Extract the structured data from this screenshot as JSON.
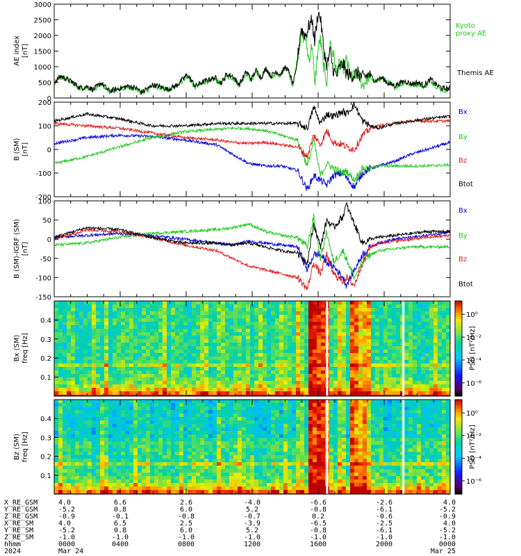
{
  "chart_data": [
    {
      "type": "line",
      "ylabel": "AE index [nT]",
      "ylim": [
        0,
        3000
      ],
      "yticks": [
        "0",
        "500",
        "1000",
        "1500",
        "2000",
        "2500",
        "3000"
      ],
      "legend": [
        "Kyoto proxy AE",
        "Themis AE"
      ],
      "series": [
        {
          "name": "Kyoto proxy AE",
          "color": "#22c81e",
          "x": [
            0,
            40,
            80,
            120,
            160,
            200,
            240,
            290,
            340,
            400,
            460,
            500,
            520,
            535,
            545,
            555,
            565,
            575,
            600,
            640,
            700,
            760,
            820,
            870,
            920,
            990,
            1030,
            1060,
            1100,
            1140,
            1185,
            1215,
            1245,
            1275,
            1305,
            1335,
            1365,
            1395,
            1425,
            1450,
            1470,
            1490,
            1520,
            1550,
            1570,
            1590,
            1605,
            1625,
            1640,
            1660,
            1680,
            1700,
            1720,
            1740,
            1760,
            1780,
            1800,
            1830,
            1870,
            1900,
            1940,
            1980,
            2020,
            2060,
            2100,
            2160,
            2200,
            2240,
            2280,
            2320,
            2360,
            2400,
            2440
          ],
          "y": [
            450,
            650,
            600,
            450,
            300,
            350,
            250,
            450,
            200,
            280,
            350,
            300,
            250,
            150,
            200,
            180,
            300,
            250,
            400,
            350,
            250,
            400,
            700,
            350,
            500,
            600,
            450,
            700,
            650,
            400,
            800,
            550,
            850,
            600,
            900,
            650,
            800,
            700,
            1000,
            750,
            400,
            1000,
            2000,
            1900,
            1200,
            1750,
            400,
            1500,
            1900,
            1000,
            500,
            1800,
            1400,
            800,
            1100,
            900,
            1200,
            650,
            800,
            400,
            700,
            500,
            650,
            500,
            350,
            500,
            400,
            450,
            350,
            550,
            350,
            250,
            250
          ]
        },
        {
          "name": "Themis AE",
          "color": "#000000",
          "x": [
            0,
            40,
            80,
            120,
            160,
            200,
            240,
            290,
            340,
            400,
            460,
            500,
            520,
            535,
            545,
            555,
            565,
            575,
            600,
            640,
            700,
            760,
            820,
            870,
            920,
            990,
            1030,
            1060,
            1100,
            1140,
            1185,
            1215,
            1245,
            1275,
            1305,
            1335,
            1365,
            1395,
            1425,
            1450,
            1470,
            1490,
            1520,
            1550,
            1570,
            1590,
            1605,
            1625,
            1640,
            1660,
            1680,
            1700,
            1720,
            1740,
            1760,
            1780,
            1800,
            1830,
            1870,
            1900,
            1940,
            1980,
            2020,
            2060,
            2100,
            2160,
            2200,
            2240,
            2280,
            2320,
            2360,
            2400,
            2440
          ],
          "y": [
            500,
            700,
            600,
            480,
            320,
            370,
            270,
            480,
            220,
            300,
            380,
            320,
            270,
            170,
            220,
            200,
            320,
            270,
            420,
            380,
            270,
            420,
            750,
            380,
            520,
            650,
            480,
            750,
            700,
            430,
            850,
            600,
            900,
            650,
            950,
            700,
            850,
            750,
            1000,
            800,
            450,
            800,
            2200,
            2000,
            2300,
            2500,
            1800,
            2700,
            2600,
            1600,
            1000,
            1500,
            900,
            700,
            1000,
            1100,
            800,
            700,
            800,
            650,
            750,
            550,
            650,
            450,
            400,
            550,
            450,
            500,
            400,
            600,
            400,
            300,
            300
          ]
        }
      ]
    },
    {
      "type": "line",
      "ylabel": "B (SM) [nT]",
      "ylim": [
        -200,
        200
      ],
      "yticks": [
        "-200",
        "-100",
        "0",
        "100",
        "200"
      ],
      "legend": [
        "Bx",
        "By",
        "Bz",
        "Btot"
      ],
      "series": [
        {
          "name": "Bx",
          "color": "#0000d6",
          "x": [
            0,
            200,
            400,
            600,
            800,
            1000,
            1100,
            1200,
            1300,
            1400,
            1500,
            1560,
            1600,
            1640,
            1680,
            1720,
            1780,
            1800,
            1850,
            1900,
            1950,
            2000,
            2100,
            2200,
            2300,
            2440
          ],
          "y": [
            25,
            50,
            60,
            55,
            40,
            20,
            -20,
            -60,
            -70,
            -70,
            -90,
            -170,
            -110,
            -130,
            -150,
            -110,
            -100,
            -120,
            -160,
            -100,
            -80,
            -70,
            -50,
            -20,
            0,
            30
          ]
        },
        {
          "name": "By",
          "color": "#22c81e",
          "x": [
            0,
            200,
            400,
            600,
            800,
            1000,
            1100,
            1200,
            1300,
            1400,
            1500,
            1560,
            1600,
            1640,
            1680,
            1720,
            1780,
            1800,
            1850,
            1900,
            1950,
            2000,
            2100,
            2200,
            2300,
            2440
          ],
          "y": [
            -60,
            -30,
            10,
            50,
            75,
            85,
            90,
            88,
            80,
            60,
            40,
            -70,
            40,
            -110,
            -60,
            -80,
            -100,
            -90,
            -130,
            -80,
            -80,
            -70,
            -70,
            -70,
            -70,
            -65
          ]
        },
        {
          "name": "Bz",
          "color": "#dc1c1c",
          "x": [
            0,
            200,
            400,
            600,
            800,
            1000,
            1100,
            1200,
            1300,
            1400,
            1500,
            1560,
            1600,
            1640,
            1680,
            1720,
            1780,
            1800,
            1850,
            1900,
            1950,
            2000,
            2100,
            2200,
            2300,
            2440
          ],
          "y": [
            110,
            100,
            90,
            70,
            50,
            40,
            30,
            25,
            30,
            20,
            10,
            -30,
            60,
            20,
            80,
            30,
            20,
            10,
            0,
            60,
            90,
            100,
            110,
            120,
            120,
            120
          ]
        },
        {
          "name": "Btot",
          "color": "#000000",
          "x": [
            0,
            200,
            400,
            600,
            800,
            1000,
            1100,
            1200,
            1300,
            1400,
            1500,
            1560,
            1600,
            1640,
            1680,
            1720,
            1780,
            1800,
            1850,
            1900,
            1950,
            2000,
            2100,
            2200,
            2300,
            2440
          ],
          "y": [
            120,
            150,
            130,
            100,
            100,
            110,
            110,
            110,
            110,
            110,
            110,
            90,
            180,
            110,
            150,
            140,
            160,
            150,
            190,
            120,
            100,
            90,
            110,
            120,
            130,
            140
          ]
        }
      ]
    },
    {
      "type": "line",
      "ylabel": "B (SM)-IGRF (SM) [nT]",
      "ylim": [
        -150,
        100
      ],
      "yticks": [
        "-150",
        "-100",
        "-50",
        "0",
        "50",
        "100"
      ],
      "legend": [
        "Bx",
        "By",
        "Bz",
        "Btot"
      ],
      "series": [
        {
          "name": "Bx",
          "color": "#0000d6",
          "x": [
            0,
            200,
            400,
            600,
            800,
            1000,
            1100,
            1200,
            1300,
            1400,
            1500,
            1560,
            1600,
            1640,
            1680,
            1720,
            1780,
            1800,
            1850,
            1900,
            1950,
            2000,
            2100,
            2200,
            2300,
            2440
          ],
          "y": [
            5,
            10,
            15,
            10,
            0,
            -10,
            -15,
            -5,
            -10,
            -15,
            -20,
            -80,
            -40,
            -40,
            -60,
            -70,
            -100,
            -120,
            -80,
            -40,
            -20,
            -10,
            0,
            5,
            10,
            20
          ]
        },
        {
          "name": "By",
          "color": "#22c81e",
          "x": [
            0,
            200,
            400,
            600,
            800,
            1000,
            1100,
            1200,
            1300,
            1400,
            1500,
            1560,
            1600,
            1640,
            1680,
            1720,
            1780,
            1800,
            1850,
            1900,
            1950,
            2000,
            2100,
            2200,
            2300,
            2440
          ],
          "y": [
            -15,
            -10,
            5,
            15,
            20,
            25,
            30,
            40,
            20,
            10,
            5,
            -20,
            60,
            -50,
            20,
            -60,
            -30,
            -50,
            -100,
            -60,
            -40,
            -30,
            -25,
            -20,
            -20,
            -20
          ]
        },
        {
          "name": "Bz",
          "color": "#dc1c1c",
          "x": [
            0,
            200,
            400,
            600,
            800,
            1000,
            1100,
            1200,
            1300,
            1400,
            1500,
            1560,
            1600,
            1640,
            1680,
            1720,
            1780,
            1800,
            1850,
            1900,
            1950,
            2000,
            2100,
            2200,
            2300,
            2440
          ],
          "y": [
            0,
            25,
            20,
            5,
            -15,
            -30,
            -50,
            -70,
            -80,
            -90,
            -100,
            -130,
            -60,
            -90,
            -40,
            -90,
            -110,
            -100,
            -120,
            -60,
            -20,
            -10,
            -5,
            0,
            5,
            10
          ]
        },
        {
          "name": "Btot",
          "color": "#000000",
          "x": [
            0,
            200,
            400,
            600,
            800,
            1000,
            1100,
            1200,
            1300,
            1400,
            1500,
            1560,
            1600,
            1640,
            1680,
            1720,
            1780,
            1800,
            1850,
            1900,
            1950,
            2000,
            2100,
            2200,
            2300,
            2440
          ],
          "y": [
            5,
            30,
            25,
            5,
            -10,
            -10,
            -15,
            -10,
            -20,
            -30,
            -35,
            -60,
            40,
            -20,
            50,
            30,
            60,
            90,
            40,
            -10,
            0,
            5,
            10,
            15,
            20,
            20
          ]
        }
      ]
    },
    {
      "type": "heatmap",
      "ylabel": "Bx (SM) freq [Hz]",
      "ylim": [
        0,
        0.5
      ],
      "yticks": [
        "0.1",
        "0.2",
        "0.3",
        "0.4"
      ],
      "colorbar_label": "PSD [nT²/Hz]",
      "colorbar_ticks": [
        "10⁰",
        "10⁻²",
        "10⁻⁴",
        "10⁻⁶"
      ]
    },
    {
      "type": "heatmap",
      "ylabel": "Bz (SM) freq [Hz]",
      "ylim": [
        0,
        0.5
      ],
      "yticks": [
        "0.1",
        "0.2",
        "0.3",
        "0.4"
      ],
      "colorbar_label": "PSD [nT²/Hz]",
      "colorbar_ticks": [
        "10⁰",
        "10⁻²",
        "10⁻⁴",
        "10⁻⁶"
      ]
    }
  ],
  "panel_labels": {
    "p1_l1": "AE index",
    "p1_l2": "[nT]",
    "p2_l1": "B (SM)",
    "p2_l2": "[nT]",
    "p3_l1": "B (SM)-IGRF (SM)",
    "p3_l2": "[nT]",
    "p4_l1": "Bx (SM)",
    "p4_l2": "freq [Hz]",
    "p5_l1": "Bz (SM)",
    "p5_l2": "freq [Hz]",
    "psd_label": "PSD [nT²/Hz]"
  },
  "legend_text": {
    "kyoto1": "Kyoto",
    "kyoto2": "proxy AE",
    "themis": "Themis AE"
  },
  "colors": {
    "bx": "#0000d6",
    "by": "#22c81e",
    "bz": "#dc1c1c",
    "btot": "#000000"
  },
  "ephemeris": {
    "rows": [
      {
        "label": "X_RE_GSM",
        "values": [
          "4.0",
          "6.6",
          "2.6",
          "-4.0",
          "-6.6",
          "-2.6",
          "4.0"
        ]
      },
      {
        "label": "Y_RE_GSM",
        "values": [
          "-5.2",
          "0.8",
          "6.0",
          "5.2",
          "-0.8",
          "-6.1",
          "-5.2"
        ]
      },
      {
        "label": "Z_RE_GSM",
        "values": [
          "-0.9",
          "-0.1",
          "-0.8",
          "-0.7",
          "0.2",
          "-0.6",
          "-0.9"
        ]
      },
      {
        "label": "X_RE_SM",
        "values": [
          "4.0",
          "6.5",
          "2.5",
          "-3.9",
          "-6.5",
          "-2.5",
          "4.0"
        ]
      },
      {
        "label": "Y_RE_SM",
        "values": [
          "-5.2",
          "0.8",
          "6.0",
          "5.2",
          "-0.8",
          "-6.1",
          "-5.2"
        ]
      },
      {
        "label": "Z_RE_SM",
        "values": [
          "-1.0",
          "-1.0",
          "-1.0",
          "-1.0",
          "-1.0",
          "-1.0",
          "-1.0"
        ]
      },
      {
        "label": "hhmm",
        "values": [
          "0000",
          "0400",
          "0800",
          "1200",
          "1600",
          "2000",
          "0000"
        ]
      }
    ],
    "year": "2024",
    "date_start": "Mar 24",
    "date_end": "Mar 25"
  }
}
